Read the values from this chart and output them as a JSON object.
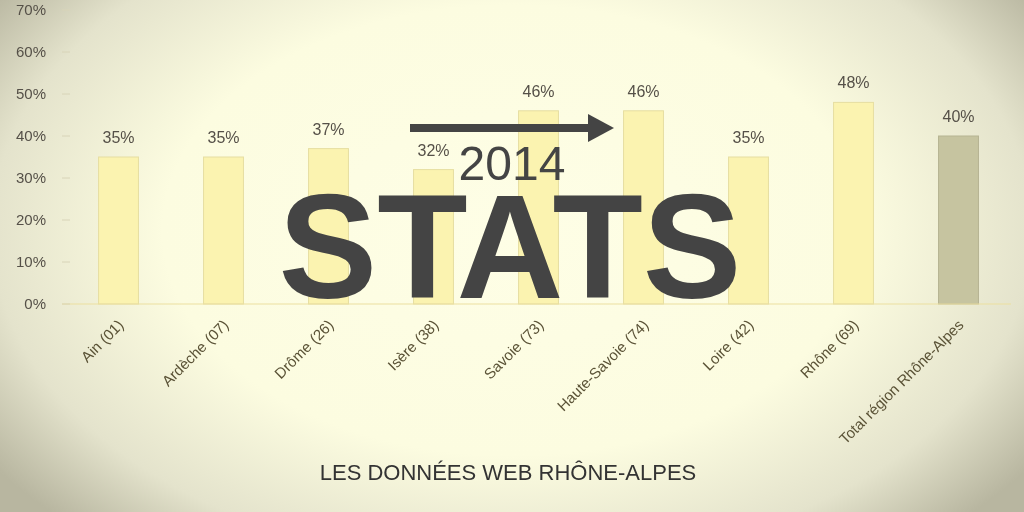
{
  "chart_data": {
    "type": "bar",
    "title": "STATS",
    "subtitle": "LES DONNÉES WEB RHÔNE-ALPES",
    "annotations": [
      "2014"
    ],
    "categories": [
      "Ain (01)",
      "Ardèche (07)",
      "Drôme (26)",
      "Isère (38)",
      "Savoie (73)",
      "Haute-Savoie (74)",
      "Loire (42)",
      "Rhône (69)",
      "Total région Rhône-Alpes"
    ],
    "values": [
      35,
      35,
      37,
      32,
      46,
      46,
      35,
      48,
      40
    ],
    "colors": [
      "#fbf3b0",
      "#fbf3b0",
      "#fbf3b0",
      "#fbf3b0",
      "#fbf3b0",
      "#fbf3b0",
      "#fbf3b0",
      "#fbf3b0",
      "#c6c4a0"
    ],
    "ylim": [
      0,
      70
    ],
    "yticks": [
      {
        "value": 0,
        "label": "0%"
      },
      {
        "value": 10,
        "label": "10%"
      },
      {
        "value": 20,
        "label": "20%"
      },
      {
        "value": 30,
        "label": "30%"
      },
      {
        "value": 40,
        "label": "40%"
      },
      {
        "value": 50,
        "label": "50%"
      },
      {
        "value": 60,
        "label": "60%"
      },
      {
        "value": 70,
        "label": "70%"
      }
    ],
    "value_labels": [
      "35%",
      "35%",
      "37%",
      "32%",
      "46%",
      "46%",
      "35%",
      "48%",
      "40%"
    ]
  }
}
